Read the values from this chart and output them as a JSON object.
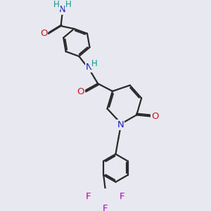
{
  "bg_color": "#e8e8f0",
  "bond_color": "#2a2a2a",
  "bond_width": 1.6,
  "atom_colors": {
    "N": "#1a1acc",
    "O": "#cc1a1a",
    "F": "#bb00bb",
    "H": "#009999"
  },
  "font_size": 8.5,
  "fig_size": [
    3.0,
    3.0
  ],
  "dpi": 100
}
